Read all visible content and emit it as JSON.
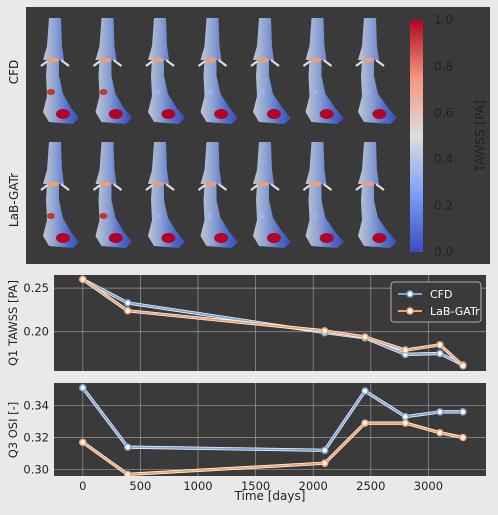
{
  "figure": {
    "row_labels": [
      "CFD",
      "LaB-GATr"
    ],
    "colorbar": {
      "label": "TAWSS [PA]",
      "ticks": [
        "1.0",
        "0.8",
        "0.6",
        "0.4",
        "0.2",
        "0.0"
      ],
      "colormap": "coolwarm",
      "low_color": "#3b4cc0",
      "mid_color": "#dddddd",
      "high_color": "#b40426"
    },
    "render_count_per_row": 7
  },
  "chart_data": [
    {
      "type": "line",
      "ylabel": "Q1 TAWSS [PA]",
      "xlabel": "",
      "xlim": [
        -250,
        3500
      ],
      "ylim": [
        0.155,
        0.265
      ],
      "yticks": [
        "0.25",
        "0.20"
      ],
      "xticks": [
        0,
        500,
        1000,
        1500,
        2000,
        2500,
        3000
      ],
      "grid": true,
      "legend": "top-right",
      "legend_entries": [
        "CFD",
        "LaB-GATr"
      ],
      "series": [
        {
          "name": "CFD",
          "color": "#7ba6dc",
          "x": [
            0,
            390,
            2100,
            2450,
            2800,
            3100,
            3300
          ],
          "y": [
            0.26,
            0.233,
            0.199,
            0.193,
            0.174,
            0.175,
            0.162
          ]
        },
        {
          "name": "LaB-GATr",
          "color": "#f2a36b",
          "x": [
            0,
            390,
            2100,
            2450,
            2800,
            3100,
            3300
          ],
          "y": [
            0.26,
            0.224,
            0.201,
            0.194,
            0.179,
            0.185,
            0.161
          ]
        }
      ]
    },
    {
      "type": "line",
      "ylabel": "Q3 OSI [-]",
      "xlabel": "Time [days]",
      "xlim": [
        -250,
        3500
      ],
      "ylim": [
        0.296,
        0.354
      ],
      "yticks": [
        "0.34",
        "0.32",
        "0.30"
      ],
      "xticks": [
        0,
        500,
        1000,
        1500,
        2000,
        2500,
        3000
      ],
      "grid": true,
      "series": [
        {
          "name": "CFD",
          "color": "#7ba6dc",
          "x": [
            0,
            390,
            2100,
            2450,
            2800,
            3100,
            3300
          ],
          "y": [
            0.351,
            0.314,
            0.312,
            0.349,
            0.333,
            0.336,
            0.336
          ]
        },
        {
          "name": "LaB-GATr",
          "color": "#f2a36b",
          "x": [
            0,
            390,
            2100,
            2450,
            2800,
            3100,
            3300
          ],
          "y": [
            0.317,
            0.297,
            0.304,
            0.329,
            0.329,
            0.323,
            0.32
          ]
        }
      ]
    }
  ]
}
